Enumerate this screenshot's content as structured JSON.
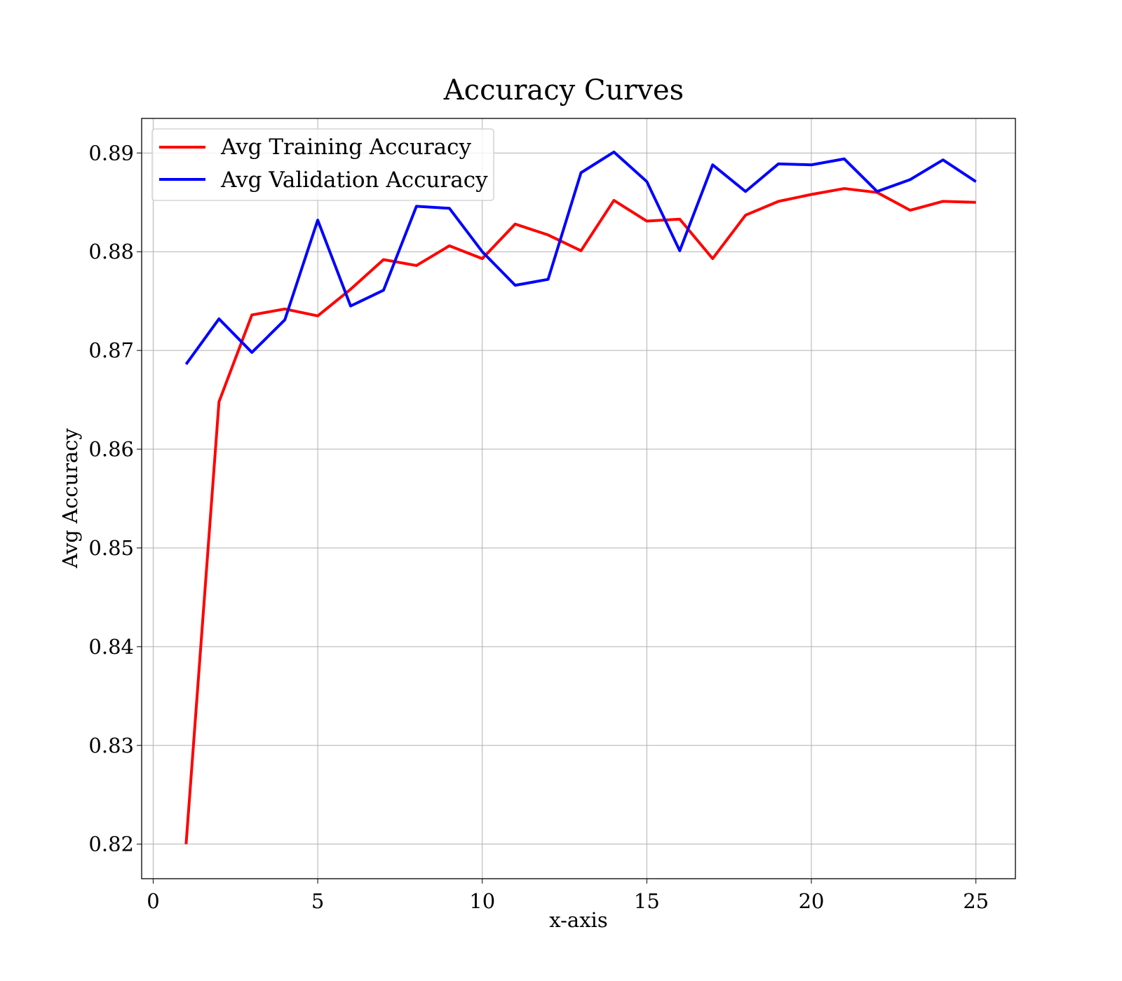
{
  "chart_data": {
    "type": "line",
    "title": "Accuracy Curves",
    "xlabel": "x-axis",
    "ylabel": "Avg Accuracy",
    "xlim": [
      -0.35,
      26.2
    ],
    "ylim": [
      0.8165,
      0.8935
    ],
    "x_ticks": [
      0,
      5,
      10,
      15,
      20,
      25
    ],
    "y_ticks": [
      0.82,
      0.83,
      0.84,
      0.85,
      0.86,
      0.87,
      0.88,
      0.89
    ],
    "y_tick_labels": [
      "0.82",
      "0.83",
      "0.84",
      "0.85",
      "0.86",
      "0.87",
      "0.88",
      "0.89"
    ],
    "grid": true,
    "legend_position": "upper-left",
    "x": [
      1,
      2,
      3,
      4,
      5,
      6,
      7,
      8,
      9,
      10,
      11,
      12,
      13,
      14,
      15,
      16,
      17,
      18,
      19,
      20,
      21,
      22,
      23,
      24,
      25
    ],
    "series": [
      {
        "name": "Avg Training Accuracy",
        "color": "#ff0000",
        "values": [
          0.82,
          0.8648,
          0.8736,
          0.8742,
          0.8735,
          0.8762,
          0.8792,
          0.8786,
          0.8806,
          0.8793,
          0.8828,
          0.8817,
          0.8801,
          0.8852,
          0.8831,
          0.8833,
          0.8793,
          0.8837,
          0.8851,
          0.8858,
          0.8864,
          0.886,
          0.8842,
          0.8851,
          0.885
        ]
      },
      {
        "name": "Avg Validation Accuracy",
        "color": "#0000ff",
        "values": [
          0.8686,
          0.8732,
          0.8698,
          0.8731,
          0.8832,
          0.8745,
          0.8761,
          0.8846,
          0.8844,
          0.88,
          0.8766,
          0.8772,
          0.888,
          0.8901,
          0.8871,
          0.8801,
          0.8888,
          0.8861,
          0.8889,
          0.8888,
          0.8894,
          0.8861,
          0.8873,
          0.8893,
          0.8871
        ]
      }
    ]
  }
}
